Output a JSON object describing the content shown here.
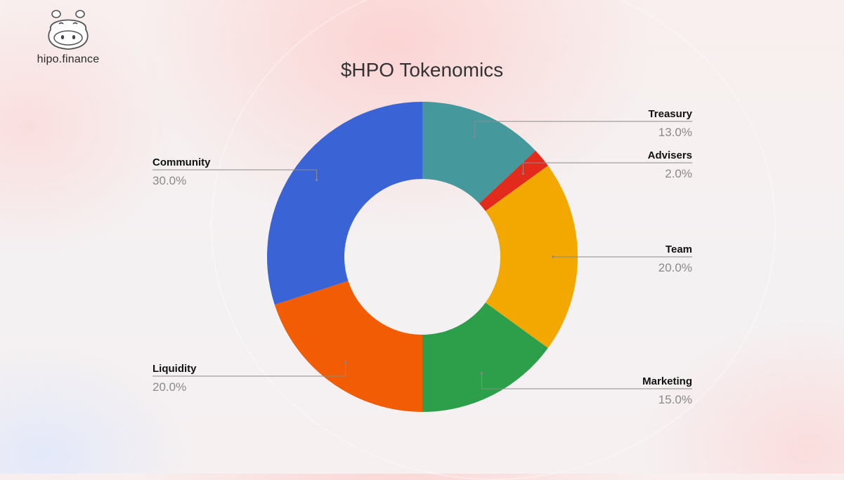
{
  "brand": {
    "name": "hipo.finance"
  },
  "chart_data": {
    "type": "pie",
    "variant": "donut",
    "title": "$HPO Tokenomics",
    "slices": [
      {
        "label": "Treasury",
        "value": 13.0,
        "value_label": "13.0%",
        "color": "#45999c"
      },
      {
        "label": "Advisers",
        "value": 2.0,
        "value_label": "2.0%",
        "color": "#e22a1d"
      },
      {
        "label": "Team",
        "value": 20.0,
        "value_label": "20.0%",
        "color": "#f2a800"
      },
      {
        "label": "Marketing",
        "value": 15.0,
        "value_label": "15.0%",
        "color": "#2d9f4a"
      },
      {
        "label": "Liquidity",
        "value": 20.0,
        "value_label": "20.0%",
        "color": "#f25c05"
      },
      {
        "label": "Community",
        "value": 30.0,
        "value_label": "30.0%",
        "color": "#3a64d6"
      }
    ],
    "start_angle": "12 o'clock",
    "direction": "clockwise"
  }
}
